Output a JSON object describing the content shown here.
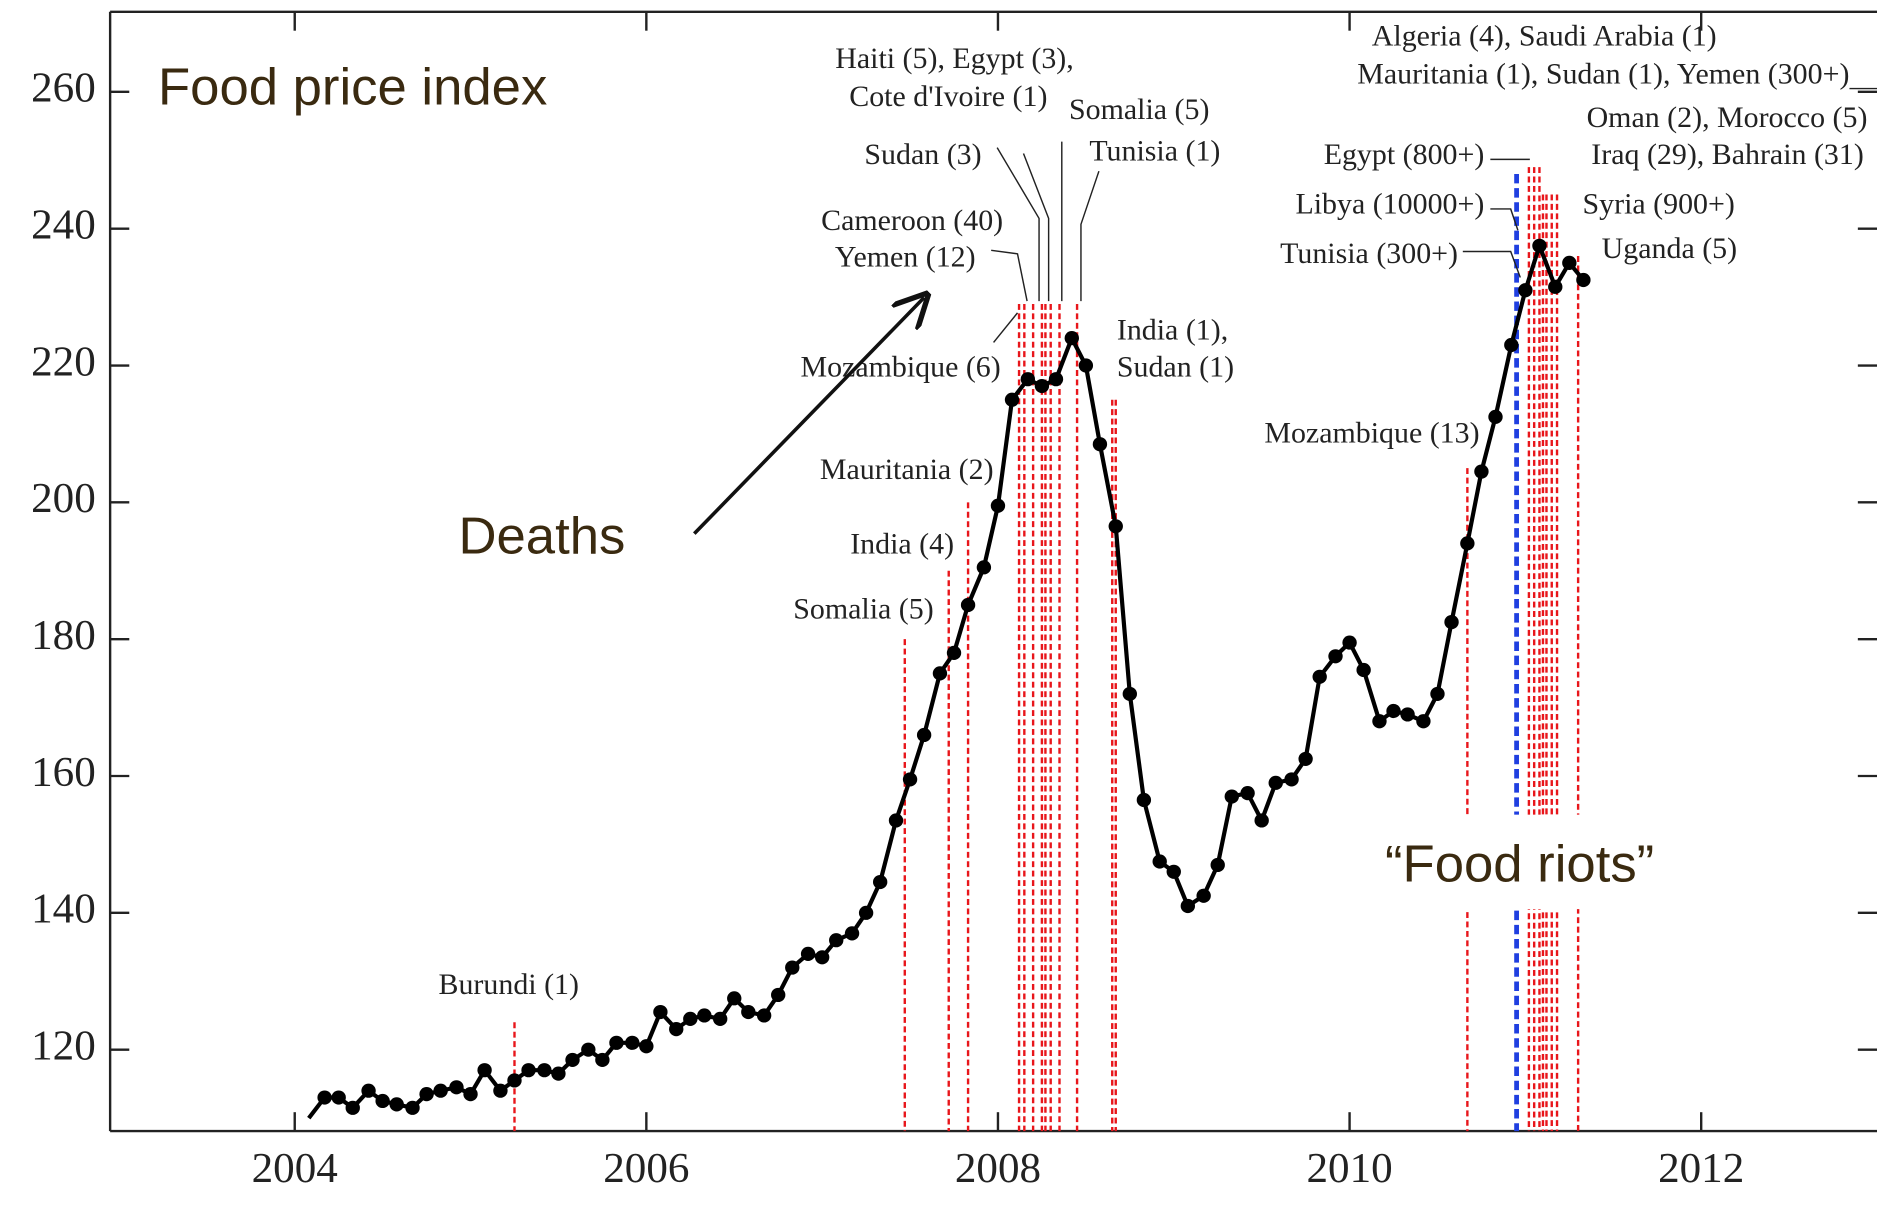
{
  "chart_data": {
    "type": "line",
    "title": "Food price index",
    "callouts": [
      "Deaths",
      "“Food riots”"
    ],
    "xlim": [
      2002.95,
      2013.0
    ],
    "ylim": [
      108.1,
      271.7
    ],
    "xticks": [
      2004,
      2006,
      2008,
      2010,
      2012
    ],
    "yticks": [
      120,
      140,
      160,
      180,
      200,
      220,
      240,
      260
    ],
    "x": [
      2004.08,
      2004.17,
      2004.25,
      2004.33,
      2004.42,
      2004.5,
      2004.58,
      2004.67,
      2004.75,
      2004.83,
      2004.92,
      2005.0,
      2005.08,
      2005.17,
      2005.25,
      2005.33,
      2005.42,
      2005.5,
      2005.58,
      2005.67,
      2005.75,
      2005.83,
      2005.92,
      2006.0,
      2006.08,
      2006.17,
      2006.25,
      2006.33,
      2006.42,
      2006.5,
      2006.58,
      2006.67,
      2006.75,
      2006.83,
      2006.92,
      2007.0,
      2007.08,
      2007.17,
      2007.25,
      2007.33,
      2007.42,
      2007.5,
      2007.58,
      2007.67,
      2007.75,
      2007.83,
      2007.92,
      2008.0,
      2008.08,
      2008.17,
      2008.25,
      2008.33,
      2008.42,
      2008.5,
      2008.58,
      2008.67,
      2008.75,
      2008.83,
      2008.92,
      2009.0,
      2009.08,
      2009.17,
      2009.25,
      2009.33,
      2009.42,
      2009.5,
      2009.58,
      2009.67,
      2009.75,
      2009.83,
      2009.92,
      2010.0,
      2010.08,
      2010.17,
      2010.25,
      2010.33,
      2010.42,
      2010.5,
      2010.58,
      2010.67,
      2010.75,
      2010.83,
      2010.92,
      2011.0,
      2011.08,
      2011.17,
      2011.25,
      2011.33
    ],
    "series": [
      {
        "color": "#000000",
        "values": [
          110,
          113,
          113,
          111.5,
          114,
          112.5,
          112,
          111.5,
          113.5,
          114,
          114.5,
          113.5,
          117,
          114,
          115.5,
          117,
          117,
          116.5,
          118.5,
          120,
          118.5,
          121,
          121,
          120.5,
          125.5,
          123,
          124.5,
          125,
          124.5,
          127.5,
          125.5,
          125,
          128,
          132,
          134,
          133.5,
          136,
          137,
          140,
          144.5,
          153.5,
          159.5,
          166,
          175,
          178,
          185,
          190.5,
          199.5,
          215,
          218,
          217,
          218,
          224,
          220,
          208.5,
          196.5,
          172,
          156.5,
          147.5,
          146,
          141,
          142.5,
          147,
          157,
          157.5,
          153.5,
          159,
          159.5,
          162.5,
          174.5,
          177.5,
          179.5,
          175.5,
          168,
          169.5,
          169,
          168,
          172,
          182.5,
          194,
          204.5,
          212.5,
          223,
          231,
          237.5,
          231.5,
          235,
          232.5
        ]
      }
    ],
    "event_lines": [
      {
        "color": "#e8161b",
        "x": [
          2005.25,
          2007.47,
          2007.72,
          2007.83,
          2008.12,
          2008.15,
          2008.2,
          2008.25,
          2008.27,
          2008.3,
          2008.35,
          2008.45,
          2008.65,
          2008.67,
          2010.67,
          2011.02,
          2011.05,
          2011.08,
          2011.1,
          2011.12,
          2011.15,
          2011.18,
          2011.3
        ],
        "top": [
          124,
          180,
          190,
          200,
          229,
          229,
          229,
          229,
          229,
          229,
          229,
          229,
          215,
          215,
          205,
          249,
          249,
          249,
          245,
          245,
          245,
          245,
          236
        ]
      },
      {
        "color": "#1f3fe0",
        "x": [
          2010.95
        ],
        "top": [
          248
        ]
      }
    ],
    "annotations": [
      "Burundi (1)",
      "Somalia (5)",
      "India (4)",
      "Mauritania (2)",
      "Mozambique (6)",
      "Yemen (12)",
      "Cameroon (40)",
      "Sudan (3)",
      "Haiti (5), Egypt (3),",
      "Cote d'Ivoire (1)",
      "Somalia (5)",
      "Tunisia (1)",
      "India (1),",
      "Sudan (1)",
      "Mozambique (13)",
      "Egypt (800+)",
      "Libya (10000+)",
      "Tunisia (300+)",
      "Algeria (4), Saudi Arabia (1)",
      "Mauritania (1), Sudan (1), Yemen (300+)",
      "Oman (2), Morocco (5)",
      "Iraq (29), Bahrain (31)",
      "Syria (900+)",
      "Uganda (5)"
    ]
  }
}
